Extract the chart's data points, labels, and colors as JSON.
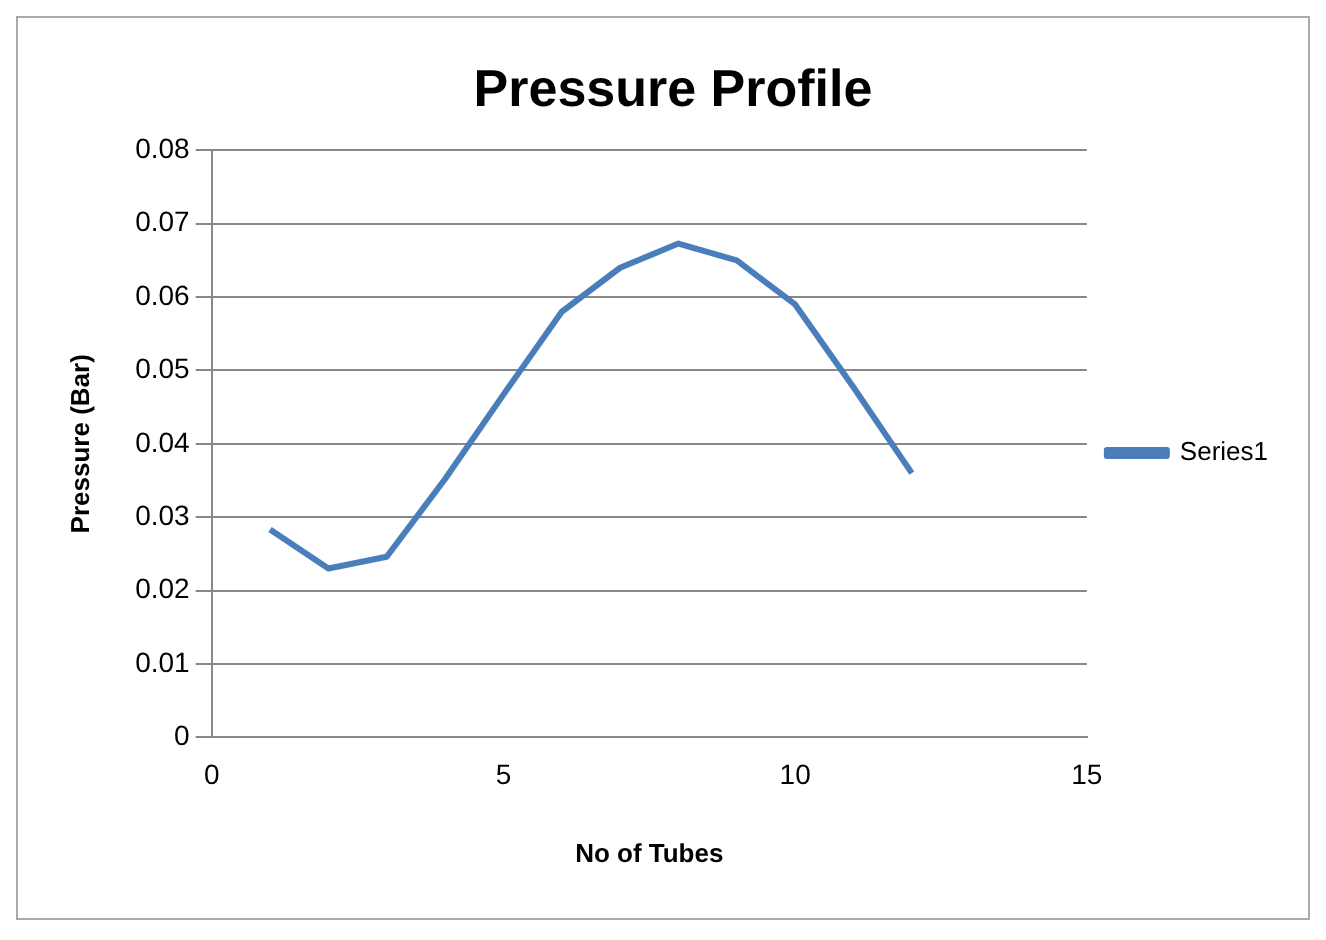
{
  "chart_data": {
    "type": "line",
    "title": "Pressure Profile",
    "xlabel": "No of Tubes",
    "ylabel": "Pressure (Bar)",
    "x": [
      1,
      2,
      3,
      4,
      5,
      6,
      7,
      8,
      9,
      10,
      11,
      12
    ],
    "series": [
      {
        "name": "Series1",
        "color": "#4a7ebb",
        "values": [
          0.0283,
          0.023,
          0.0246,
          0.0352,
          0.0467,
          0.058,
          0.064,
          0.0673,
          0.065,
          0.059,
          0.0477,
          0.036
        ]
      }
    ],
    "xlim": [
      0,
      15
    ],
    "xticks": [
      0,
      5,
      10,
      15
    ],
    "ylim": [
      0,
      0.08
    ],
    "yticks": [
      0,
      0.01,
      0.02,
      0.03,
      0.04,
      0.05,
      0.06,
      0.07,
      0.08
    ],
    "grid": "y",
    "legend": "right",
    "marker": "none",
    "line_style": "solid"
  }
}
